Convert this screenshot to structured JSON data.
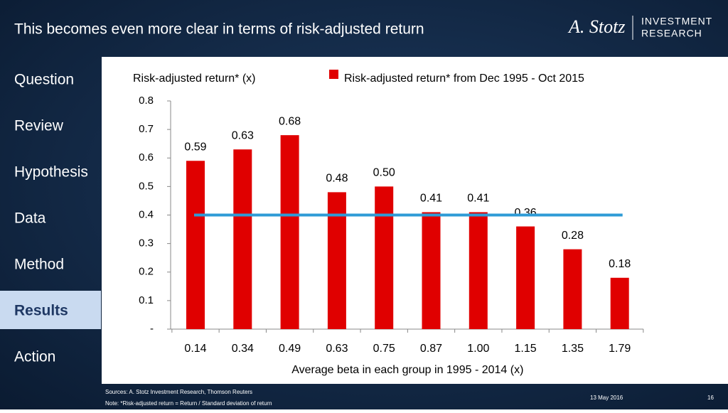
{
  "slide": {
    "title": "This becomes even more clear in terms of risk-adjusted return",
    "logo": {
      "signature": "A. Stotz",
      "line1": "INVESTMENT",
      "line2": "RESEARCH"
    },
    "nav": [
      "Question",
      "Review",
      "Hypothesis",
      "Data",
      "Method",
      "Results",
      "Action"
    ],
    "nav_active": 5,
    "sources": "Sources: A. Stotz Investment Research, Thomson Reuters",
    "note": "Note: *Risk-adjusted return = Return / Standard deviation of return",
    "date": "13 May 2016",
    "page": "16"
  },
  "chart_data": {
    "type": "bar",
    "y_label": "Risk-adjusted return* (x)",
    "x_label": "Average beta in each group in 1995 - 2014 (x)",
    "categories": [
      "0.14",
      "0.34",
      "0.49",
      "0.63",
      "0.75",
      "0.87",
      "1.00",
      "1.15",
      "1.35",
      "1.79"
    ],
    "series": [
      {
        "name": "Risk-adjusted return* from Dec 1995 - Oct 2015",
        "color": "#e00000",
        "values": [
          0.59,
          0.63,
          0.68,
          0.48,
          0.5,
          0.41,
          0.41,
          0.36,
          0.28,
          0.18
        ],
        "value_labels": [
          "0.59",
          "0.63",
          "0.68",
          "0.48",
          "0.50",
          "0.41",
          "0.41",
          "0.36",
          "0.28",
          "0.18"
        ]
      }
    ],
    "hline": {
      "value": 0.4,
      "color": "#2e9bd6"
    },
    "ylim": [
      0,
      0.8
    ],
    "yticks": [
      {
        "value": 0,
        "label": "-"
      },
      0.1,
      0.2,
      0.3,
      0.4,
      0.5,
      0.6,
      0.7,
      0.8
    ],
    "grid": false
  }
}
